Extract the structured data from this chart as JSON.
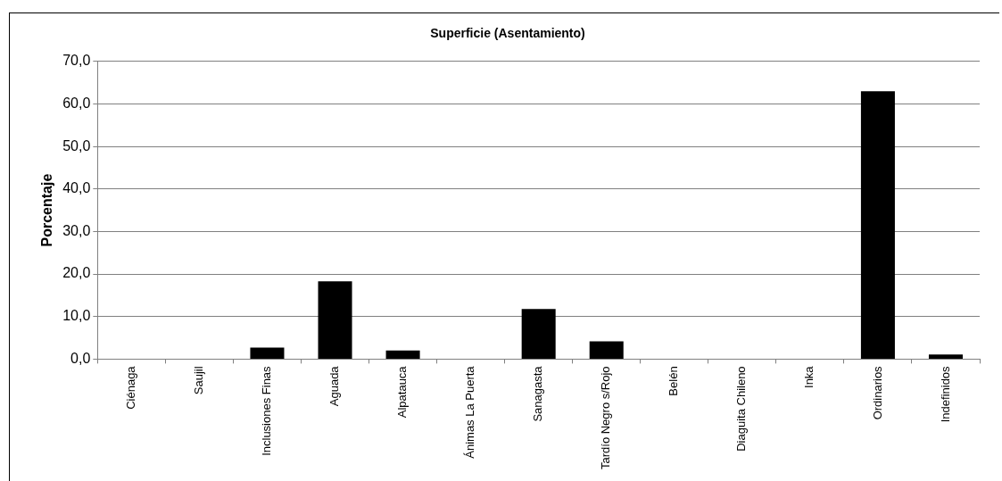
{
  "chart_data": {
    "type": "bar",
    "title": "Superficie (Asentamiento)",
    "ylabel": "Porcentaje",
    "categories": [
      "Ciénaga",
      "Saujil",
      "Inclusiones Finas",
      "Aguada",
      "Alpatauca",
      "Ánimas La Puerta",
      "Sanagasta",
      "Tardío Negro s/Rojo",
      "Belén",
      "Diaguita Chileno",
      "Inka",
      "Ordinarios",
      "Indefinidos"
    ],
    "values": [
      0,
      0,
      2.7,
      18.3,
      2.0,
      0,
      11.8,
      4.2,
      0,
      0,
      0,
      63.0,
      1.1
    ],
    "color": "#000000",
    "ylim": [
      0,
      70
    ],
    "yticks": [
      {
        "value": 0,
        "label": "0,0"
      },
      {
        "value": 10,
        "label": "10,0"
      },
      {
        "value": 20,
        "label": "20,0"
      },
      {
        "value": 30,
        "label": "30,0"
      },
      {
        "value": 40,
        "label": "40,0"
      },
      {
        "value": 50,
        "label": "50,0"
      },
      {
        "value": 60,
        "label": "60,0"
      },
      {
        "value": 70,
        "label": "70,0"
      }
    ],
    "grid": "y",
    "legend": false
  }
}
